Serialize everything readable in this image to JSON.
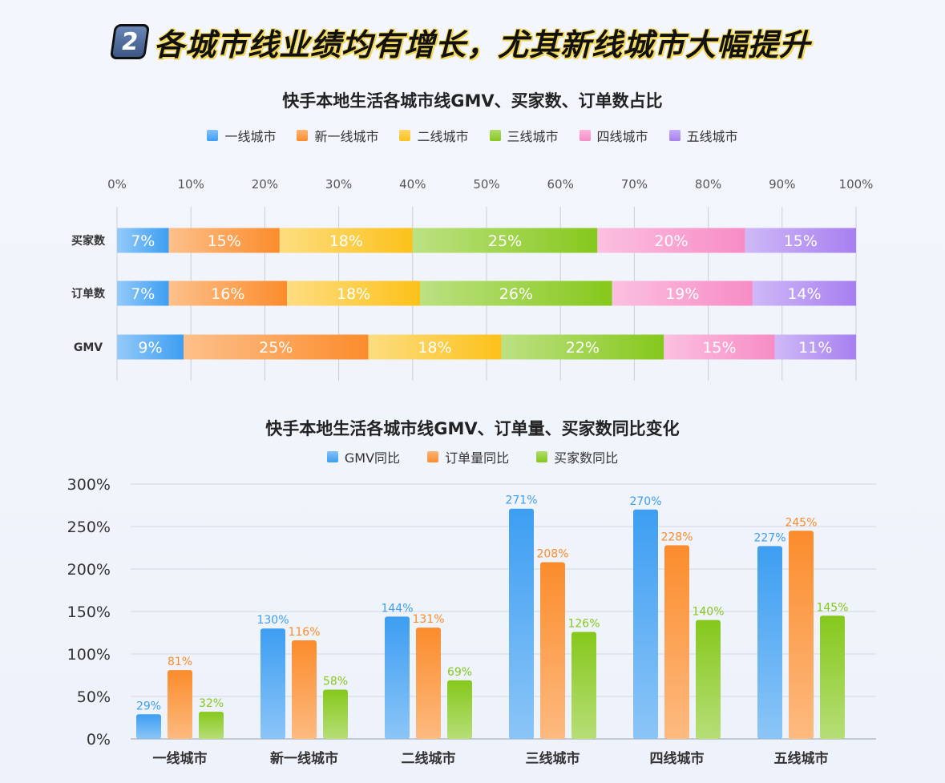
{
  "headline": {
    "number": "2",
    "text": "各城市线业绩均有增长，尤其新线城市大幅提升"
  },
  "colors": {
    "tier1": "#3d9ef2",
    "new_tier1": "#fb8c2c",
    "tier2": "#fcc11a",
    "tier3": "#86c81c",
    "tier4": "#f78cc6",
    "tier5": "#a77ff0",
    "gmv_yoy": "#3d9ef2",
    "orders_yoy": "#fb8c2c",
    "buyers_yoy": "#86c81c"
  },
  "chart_data": [
    {
      "type": "bar",
      "orientation": "horizontal-stacked-100",
      "title": "快手本地生活各城市线GMV、买家数、订单数占比",
      "xlim": [
        0,
        100
      ],
      "x_ticks": [
        "0%",
        "10%",
        "20%",
        "30%",
        "40%",
        "50%",
        "60%",
        "70%",
        "80%",
        "90%",
        "100%"
      ],
      "categories": [
        "买家数",
        "订单数",
        "GMV"
      ],
      "legend_position": "top-center",
      "series": [
        {
          "name": "一线城市",
          "values": [
            7,
            7,
            9
          ],
          "labels": [
            "7%",
            "7%",
            "9%"
          ]
        },
        {
          "name": "新一线城市",
          "values": [
            15,
            16,
            25
          ],
          "labels": [
            "15%",
            "16%",
            "25%"
          ]
        },
        {
          "name": "二线城市",
          "values": [
            18,
            18,
            18
          ],
          "labels": [
            "18%",
            "18%",
            "18%"
          ]
        },
        {
          "name": "三线城市",
          "values": [
            25,
            26,
            22
          ],
          "labels": [
            "25%",
            "26%",
            "22%"
          ]
        },
        {
          "name": "四线城市",
          "values": [
            20,
            19,
            15
          ],
          "labels": [
            "20%",
            "19%",
            "15%"
          ]
        },
        {
          "name": "五线城市",
          "values": [
            15,
            14,
            11
          ],
          "labels": [
            "15%",
            "14%",
            "11%"
          ]
        }
      ]
    },
    {
      "type": "bar",
      "orientation": "vertical-grouped",
      "title": "快手本地生活各城市线GMV、订单量、买家数同比变化",
      "ylim": [
        0,
        300
      ],
      "y_ticks": [
        "0%",
        "50%",
        "100%",
        "150%",
        "200%",
        "250%",
        "300%"
      ],
      "grid": true,
      "legend_position": "top-center",
      "categories": [
        "一线城市",
        "新一线城市",
        "二线城市",
        "三线城市",
        "四线城市",
        "五线城市"
      ],
      "series": [
        {
          "name": "GMV同比",
          "values": [
            29,
            130,
            144,
            271,
            270,
            227
          ],
          "labels": [
            "29%",
            "130%",
            "144%",
            "271%",
            "270%",
            "227%"
          ]
        },
        {
          "name": "订单量同比",
          "values": [
            81,
            116,
            131,
            208,
            228,
            245
          ],
          "labels": [
            "81%",
            "116%",
            "131%",
            "208%",
            "228%",
            "245%"
          ]
        },
        {
          "name": "买家数同比",
          "values": [
            32,
            58,
            69,
            126,
            140,
            145
          ],
          "labels": [
            "32%",
            "58%",
            "69%",
            "126%",
            "140%",
            "145%"
          ]
        }
      ]
    }
  ]
}
